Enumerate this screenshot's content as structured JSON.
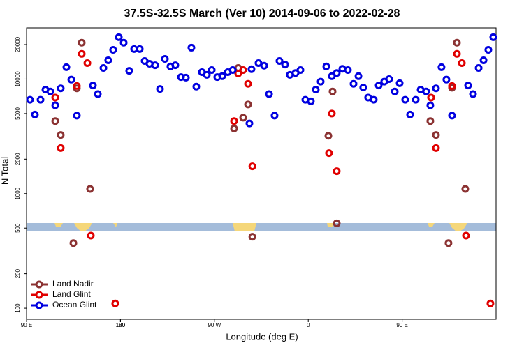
{
  "chart_data": {
    "type": "scatter",
    "title": "37.5S-32.5S March (Ver 10)   2014-09-06 to 2022-02-28",
    "x_label": "Longitude (deg E)",
    "y_label": "N Total",
    "xlim": [
      90,
      540
    ],
    "ylim": [
      80,
      28000
    ],
    "ylog": true,
    "legend": "bottom-left",
    "xticks": [
      {
        "value": 90,
        "label": "90 E"
      },
      180,
      {
        "value": 270,
        "label": "90 W"
      },
      {
        "value": 360,
        "label": "0"
      },
      {
        "value": 450,
        "label": "90 E"
      },
      180
    ],
    "yticks": [
      100,
      200,
      500,
      1000,
      2000,
      5000,
      10000,
      20000
    ],
    "series": [
      {
        "name": "Land Nadir",
        "color": "#8b3232",
        "x": [
          117.5,
          122.8,
          138.2,
          142.9,
          150.9,
          134.9,
          288.9,
          292.9,
          297.6,
          302.3,
          306.4,
          379.3,
          383.3,
          387.3,
          477.0,
          482.4,
          497.8,
          502.5,
          510.5,
          494.4
        ],
        "values": [
          4300,
          3250,
          8300,
          20800,
          1100,
          370,
          3700,
          12500,
          4600,
          6000,
          420,
          3200,
          7800,
          550,
          4300,
          3250,
          8400,
          20800,
          1100,
          370
        ]
      },
      {
        "name": "Land Glint",
        "color": "#e00000",
        "x": [
          117.5,
          122.8,
          138.2,
          142.9,
          148.3,
          151.6,
          175.0,
          288.9,
          292.9,
          297.6,
          302.3,
          306.4,
          379.9,
          382.6,
          387.3,
          477.7,
          482.4,
          497.8,
          502.5,
          507.2,
          511.2,
          534.6
        ],
        "values": [
          6900,
          2500,
          8700,
          16600,
          13800,
          430,
          110,
          4300,
          11200,
          12000,
          9100,
          1730,
          2260,
          5000,
          1570,
          6900,
          2500,
          8700,
          16600,
          13800,
          430,
          110
        ]
      },
      {
        "name": "Ocean Glint",
        "color": "#0000e0",
        "x": [
          93.3,
          98.0,
          103.4,
          108.1,
          112.8,
          117.5,
          122.8,
          128.2,
          132.9,
          138.2,
          153.6,
          158.3,
          163.7,
          168.3,
          173.0,
          178.4,
          183.1,
          188.4,
          193.1,
          198.5,
          203.2,
          207.9,
          213.2,
          217.9,
          222.6,
          227.9,
          232.6,
          238.0,
          242.7,
          248.0,
          252.7,
          258.1,
          262.8,
          267.5,
          272.8,
          277.5,
          282.9,
          287.6,
          303.6,
          305.6,
          312.3,
          317.7,
          322.4,
          327.7,
          332.4,
          337.8,
          342.4,
          347.8,
          352.5,
          357.2,
          362.5,
          367.2,
          371.9,
          377.3,
          382.6,
          387.3,
          392.7,
          398.0,
          403.4,
          408.1,
          412.7,
          417.4,
          422.8,
          427.5,
          432.8,
          437.5,
          442.9,
          447.6,
          452.9,
          457.6,
          463.0,
          467.7,
          473.0,
          477.0,
          482.4,
          487.7,
          492.4,
          497.8,
          513.2,
          517.9,
          523.3,
          528.0,
          532.6,
          537.3
        ],
        "values": [
          6600,
          4900,
          6600,
          8100,
          7800,
          5900,
          8300,
          12700,
          9900,
          4800,
          8800,
          7400,
          12500,
          14600,
          18000,
          23200,
          20800,
          11800,
          18300,
          18300,
          14400,
          13600,
          13200,
          8200,
          15000,
          12900,
          13200,
          10400,
          10300,
          18800,
          8600,
          11500,
          10900,
          12000,
          10400,
          10600,
          11500,
          12000,
          4100,
          12200,
          13800,
          13100,
          7400,
          4800,
          14400,
          13400,
          10900,
          11300,
          12000,
          6600,
          6400,
          8100,
          9500,
          12900,
          10600,
          11300,
          12300,
          12000,
          9100,
          10600,
          8450,
          6900,
          6600,
          8800,
          9500,
          10000,
          7800,
          9200,
          6600,
          4900,
          6600,
          8100,
          7800,
          5900,
          8300,
          12700,
          9900,
          4800,
          8800,
          7400,
          12500,
          14600,
          18000,
          23200
        ]
      }
    ]
  }
}
